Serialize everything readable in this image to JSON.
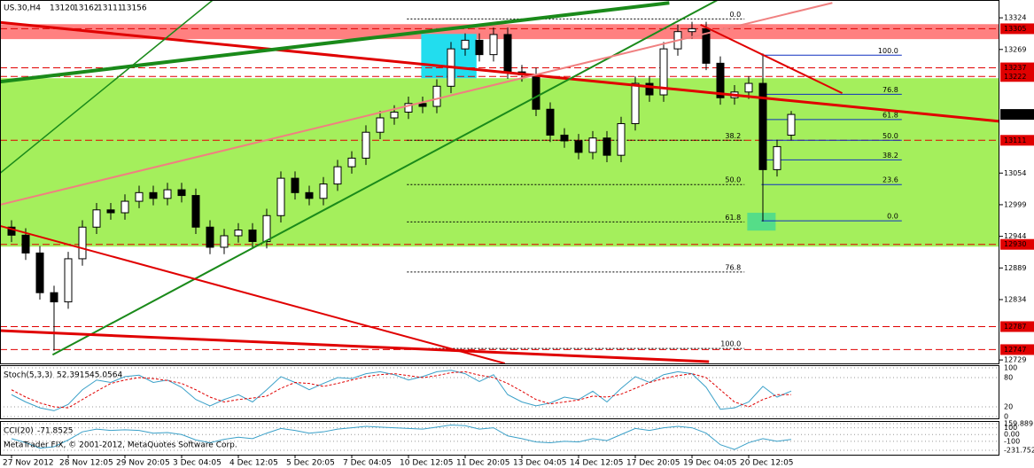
{
  "chart_data": [
    {
      "type": "candlestick",
      "title": "US.30,H4",
      "open": [
        12960,
        12946,
        12915,
        12846,
        12830,
        12905,
        12960,
        12990,
        12985,
        13005,
        13020,
        13010,
        13025,
        13015,
        12960,
        12925,
        12945,
        12955,
        12935,
        12980,
        13045,
        13020,
        13010,
        13035,
        13065,
        13080,
        13125,
        13150,
        13160,
        13175,
        13170,
        13205,
        13270,
        13285,
        13260,
        13295,
        13230,
        13225,
        13165,
        13120,
        13110,
        13090,
        13115,
        13085,
        13140,
        13210,
        13190,
        13270,
        13300,
        13305,
        13245,
        13185,
        13195,
        13210,
        13060,
        13120
      ],
      "high": [
        12972,
        12958,
        12927,
        12858,
        12917,
        12972,
        13002,
        13002,
        13017,
        13032,
        13032,
        13037,
        13037,
        13027,
        12972,
        12957,
        12967,
        12967,
        12992,
        13057,
        13057,
        13032,
        13047,
        13077,
        13092,
        13137,
        13162,
        13172,
        13187,
        13187,
        13217,
        13282,
        13297,
        13297,
        13307,
        13307,
        13242,
        13237,
        13177,
        13132,
        13122,
        13127,
        13127,
        13152,
        13222,
        13222,
        13282,
        13312,
        13317,
        13317,
        13257,
        13207,
        13222,
        13262,
        13112,
        13162
      ],
      "low": [
        12934,
        12903,
        12834,
        12745,
        12818,
        12893,
        12948,
        12973,
        12973,
        12993,
        12998,
        12998,
        13003,
        12948,
        12913,
        12913,
        12933,
        12923,
        12923,
        12968,
        13008,
        12998,
        12998,
        13023,
        13053,
        13068,
        13113,
        13138,
        13148,
        13158,
        13158,
        13193,
        13258,
        13248,
        13248,
        13218,
        13213,
        13153,
        13108,
        13098,
        13078,
        13078,
        13073,
        13073,
        13128,
        13178,
        13178,
        13258,
        13288,
        13233,
        13173,
        13173,
        13183,
        12970,
        13048,
        13111
      ],
      "close": [
        12946,
        12915,
        12846,
        12830,
        12905,
        12960,
        12990,
        12985,
        13005,
        13020,
        13010,
        13025,
        13015,
        12960,
        12925,
        12945,
        12955,
        12935,
        12980,
        13045,
        13020,
        13010,
        13035,
        13065,
        13080,
        13125,
        13150,
        13160,
        13175,
        13170,
        13205,
        13270,
        13285,
        13260,
        13295,
        13230,
        13225,
        13165,
        13120,
        13110,
        13090,
        13115,
        13085,
        13140,
        13210,
        13190,
        13270,
        13300,
        13305,
        13245,
        13185,
        13195,
        13210,
        13060,
        13100,
        13156
      ],
      "bull_color": "#ffffff",
      "bear_color": "#000000",
      "ylim": [
        12723,
        13355
      ],
      "yticks": [
        13324,
        13269,
        13054,
        12999,
        12944,
        12889,
        12834,
        12729
      ],
      "xticks": [
        {
          "value": 0,
          "label": "27 Nov 2012"
        },
        {
          "value": 4,
          "label": "28 Nov 12:05"
        },
        {
          "value": 8,
          "label": "29 Nov 20:05"
        },
        {
          "value": 12,
          "label": "3 Dec 04:05"
        },
        {
          "value": 16,
          "label": "4 Dec 12:05"
        },
        {
          "value": 20,
          "label": "5 Dec 20:05"
        },
        {
          "value": 24,
          "label": "7 Dec 04:05"
        },
        {
          "value": 28,
          "label": "10 Dec 12:05"
        },
        {
          "value": 32,
          "label": "11 Dec 20:05"
        },
        {
          "value": 36,
          "label": "13 Dec 04:05"
        },
        {
          "value": 40,
          "label": "14 Dec 12:05"
        },
        {
          "value": 44,
          "label": "17 Dec 20:05"
        },
        {
          "value": 48,
          "label": "19 Dec 04:05"
        },
        {
          "value": 52,
          "label": "20 Dec 12:05"
        }
      ],
      "zones": [
        {
          "y": [
            13287,
            13313
          ],
          "color": "#ff8080"
        },
        {
          "y": [
            12926,
            13219
          ],
          "color": "#a4ef5c"
        }
      ],
      "boxes": [
        {
          "x": [
            28.9,
            32.8
          ],
          "y": [
            13219,
            13296
          ],
          "color": "#22ddee"
        },
        {
          "x": [
            51.9,
            53.9
          ],
          "y": [
            12954,
            12985
          ],
          "color": "#55dd88"
        }
      ],
      "levels": [
        13305,
        13237,
        13222,
        13111,
        12930,
        12787,
        12747
      ],
      "level_color": "#e00000",
      "trendlines": [
        {
          "x": [
            -0.8,
            69.7
          ],
          "y": [
            13316,
            13144
          ],
          "color": "#e00000",
          "width": 3
        },
        {
          "x": [
            -0.8,
            46.4
          ],
          "y": [
            13213,
            13350
          ],
          "color": "#1a8a1a",
          "width": 4
        },
        {
          "x": [
            -0.8,
            14.2
          ],
          "y": [
            13054,
            13355
          ],
          "color": "#1a8a1a",
          "width": 1.5
        },
        {
          "x": [
            2.9,
            49.8
          ],
          "y": [
            12738,
            13355
          ],
          "color": "#1a8a1a",
          "width": 2
        },
        {
          "x": [
            -0.8,
            57.9
          ],
          "y": [
            12999,
            13350
          ],
          "color": "#f08080",
          "width": 2
        },
        {
          "x": [
            -0.8,
            34.8
          ],
          "y": [
            12962,
            12723
          ],
          "color": "#e00000",
          "width": 2
        },
        {
          "x": [
            -0.8,
            49.2
          ],
          "y": [
            12780,
            12726
          ],
          "color": "#e00000",
          "width": 3
        },
        {
          "x": [
            48.6,
            58.6
          ],
          "y": [
            13312,
            13193
          ],
          "color": "#e00000",
          "width": 2
        }
      ],
      "fib": [
        {
          "x": [
            27.9,
            51.7
          ],
          "color": "#000000",
          "levels": [
            {
              "value": 13322,
              "label": "0.0"
            },
            {
              "value": 13111,
              "label": "38.2"
            },
            {
              "value": 13034,
              "label": "50.0"
            },
            {
              "value": 12969,
              "label": "61.8"
            },
            {
              "value": 12882,
              "label": "76.8"
            },
            {
              "value": 12749,
              "label": "100.0"
            }
          ]
        },
        {
          "x": [
            52.9,
            62.8
          ],
          "color": "#1030c0",
          "levels": [
            {
              "value": 13259,
              "label": "100.0"
            },
            {
              "value": 13191,
              "label": "76.8"
            },
            {
              "value": 13147,
              "label": "61.8"
            },
            {
              "value": 13111,
              "label": "50.0"
            },
            {
              "value": 13077,
              "label": "38.2"
            },
            {
              "value": 13034,
              "label": "23.6"
            },
            {
              "value": 12971,
              "label": "0.0"
            }
          ]
        }
      ]
    },
    {
      "type": "line",
      "title": "Stoch(5,3,3)",
      "series": [
        {
          "color": "#3aa0c8",
          "values": [
            45,
            30,
            18,
            12,
            25,
            55,
            75,
            70,
            82,
            85,
            70,
            75,
            60,
            35,
            22,
            35,
            45,
            30,
            55,
            82,
            70,
            55,
            68,
            80,
            78,
            88,
            92,
            86,
            75,
            82,
            92,
            95,
            88,
            72,
            86,
            45,
            30,
            22,
            28,
            40,
            35,
            52,
            30,
            58,
            82,
            70,
            86,
            92,
            88,
            60,
            15,
            18,
            30,
            62,
            40,
            52.3915
          ]
        },
        {
          "color": "#e00000",
          "values": [
            55,
            40,
            28,
            20,
            18,
            35,
            52,
            68,
            75,
            80,
            78,
            74,
            68,
            55,
            40,
            30,
            35,
            38,
            42,
            58,
            70,
            68,
            62,
            68,
            75,
            82,
            86,
            88,
            84,
            80,
            84,
            90,
            92,
            85,
            80,
            68,
            52,
            35,
            26,
            30,
            34,
            42,
            40,
            46,
            58,
            70,
            78,
            84,
            88,
            80,
            55,
            30,
            20,
            35,
            45,
            45.0564
          ]
        }
      ],
      "ylim": [
        0,
        100
      ],
      "yticks": [
        100,
        80,
        20,
        0
      ]
    },
    {
      "type": "line",
      "title": "CCI(20)",
      "copyright": "MetaTrader FIX, © 2001-2012, MetaQuotes Software Corp.",
      "series": [
        {
          "color": "#3aa0c8",
          "values": [
            -60,
            -120,
            -200,
            -180,
            -80,
            40,
            80,
            60,
            70,
            60,
            20,
            30,
            0,
            -80,
            -120,
            -70,
            -40,
            -60,
            20,
            90,
            60,
            20,
            40,
            80,
            100,
            120,
            110,
            100,
            90,
            80,
            110,
            140,
            130,
            80,
            100,
            -20,
            -60,
            -110,
            -120,
            -100,
            -110,
            -60,
            -90,
            0,
            90,
            60,
            100,
            120,
            100,
            20,
            -150,
            -220,
            -120,
            -60,
            -100,
            -71.8525
          ]
        }
      ],
      "ylim": [
        -231.752,
        159.889
      ],
      "yticks": [
        159.889,
        100,
        {
          "value": 0,
          "label": "0.00"
        },
        -100,
        -231.752
      ]
    }
  ]
}
